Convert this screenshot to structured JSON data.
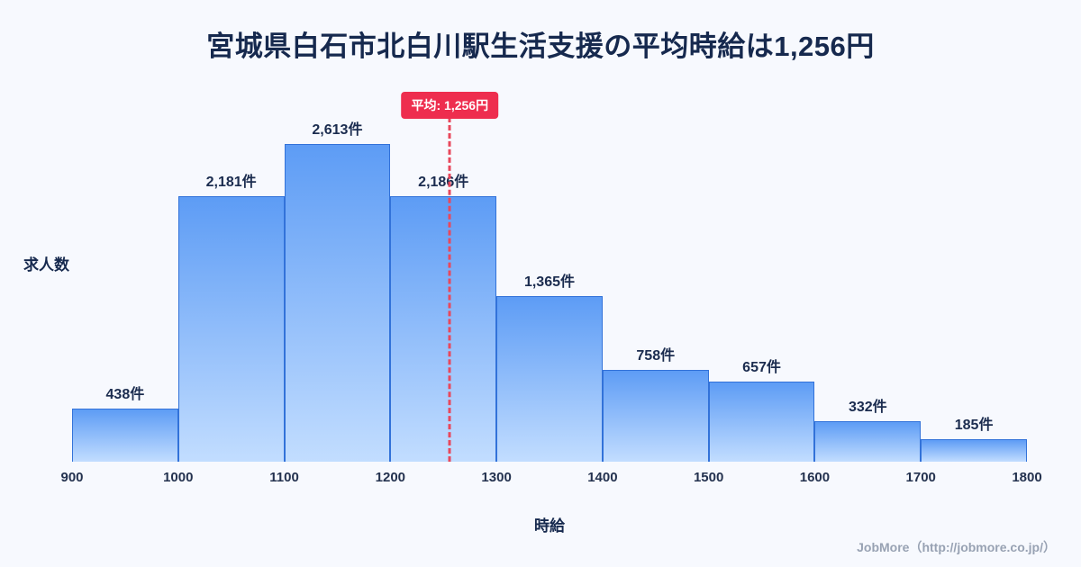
{
  "title": "宮城県白石市北白川駅生活支援の平均時給は1,256円",
  "chart_data": {
    "type": "bar",
    "subtype": "histogram",
    "title": "宮城県白石市北白川駅生活支援の平均時給は1,256円",
    "xlabel": "時給",
    "ylabel": "求人数",
    "x_min": 900,
    "x_max": 1800,
    "bin_edges": [
      900,
      1000,
      1100,
      1200,
      1300,
      1400,
      1500,
      1600,
      1700,
      1800
    ],
    "x_tick_labels": [
      "900",
      "1000",
      "1100",
      "1200",
      "1300",
      "1400",
      "1500",
      "1600",
      "1700",
      "1800"
    ],
    "values": [
      438,
      2181,
      2613,
      2186,
      1365,
      758,
      657,
      332,
      185
    ],
    "bar_labels": [
      "438件",
      "2,181件",
      "2,613件",
      "2,186件",
      "1,365件",
      "758件",
      "657件",
      "332件",
      "185件"
    ],
    "ylim": [
      0,
      2730
    ],
    "grid": false,
    "legend": false,
    "average": {
      "value": 1256,
      "label": "平均: 1,256円"
    },
    "colors": {
      "bar_gradient_top": "#5d9cf5",
      "bar_gradient_bottom": "#c2ddff",
      "bar_border": "#3272d9",
      "average_line": "#e8485c",
      "badge_background": "#ee2d4e",
      "badge_text": "#ffffff",
      "title_text": "#16294e",
      "value_label_text": "#1b2c4f",
      "axis_text": "#24324f",
      "footer_text": "#98a2b3",
      "background": "#f7f9fe"
    }
  },
  "footer": {
    "text": "JobMore（http://jobmore.co.jp/）"
  }
}
